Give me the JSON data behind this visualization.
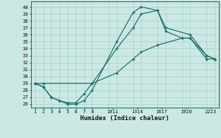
{
  "xlabel": "Humidex (Indice chaleur)",
  "bg_color": "#cce8e4",
  "grid_color": "#aad4cc",
  "line_color": "#1a7068",
  "yticks": [
    26,
    27,
    28,
    29,
    30,
    31,
    32,
    33,
    34,
    35,
    36,
    37,
    38,
    39,
    40
  ],
  "ylim": [
    25.5,
    40.8
  ],
  "xlim": [
    0.5,
    23.5
  ],
  "curve1_x": [
    1,
    2,
    3,
    4,
    5,
    6,
    7,
    8,
    11,
    13,
    14,
    16,
    17,
    20,
    22,
    23
  ],
  "curve1_y": [
    29,
    28.5,
    27,
    26.5,
    26,
    26,
    26.5,
    28,
    35,
    39.2,
    40.0,
    39.5,
    37,
    36,
    33,
    32.5
  ],
  "curve2_x": [
    1,
    2,
    3,
    4,
    5,
    6,
    7,
    8,
    11,
    13,
    14,
    16,
    17,
    19,
    20,
    22,
    23
  ],
  "curve2_y": [
    29,
    28.5,
    27,
    26.5,
    26.2,
    26.2,
    27.5,
    29,
    34,
    37,
    39,
    39.5,
    36.5,
    35.5,
    35.5,
    33,
    32.5
  ],
  "curve3_x": [
    1,
    2,
    8,
    11,
    13,
    14,
    16,
    19,
    20,
    22,
    23
  ],
  "curve3_y": [
    29,
    29,
    29,
    30.5,
    32.5,
    33.5,
    34.5,
    35.5,
    35.5,
    32.5,
    32.5
  ],
  "xtick_positions": [
    1,
    2,
    3,
    4,
    5,
    6,
    7,
    8,
    10,
    11,
    13,
    14,
    16,
    17,
    19,
    20,
    22,
    23
  ],
  "xgroup_positions": [
    1,
    2,
    3,
    4,
    5,
    6,
    7,
    8,
    10.5,
    13.5,
    16.5,
    19.5,
    22.5
  ],
  "xgroup_labels": [
    "1",
    "2",
    "3",
    "4",
    "5",
    "6",
    "7",
    "8",
    "1011",
    "1314",
    "1617",
    "1920",
    "2223"
  ]
}
